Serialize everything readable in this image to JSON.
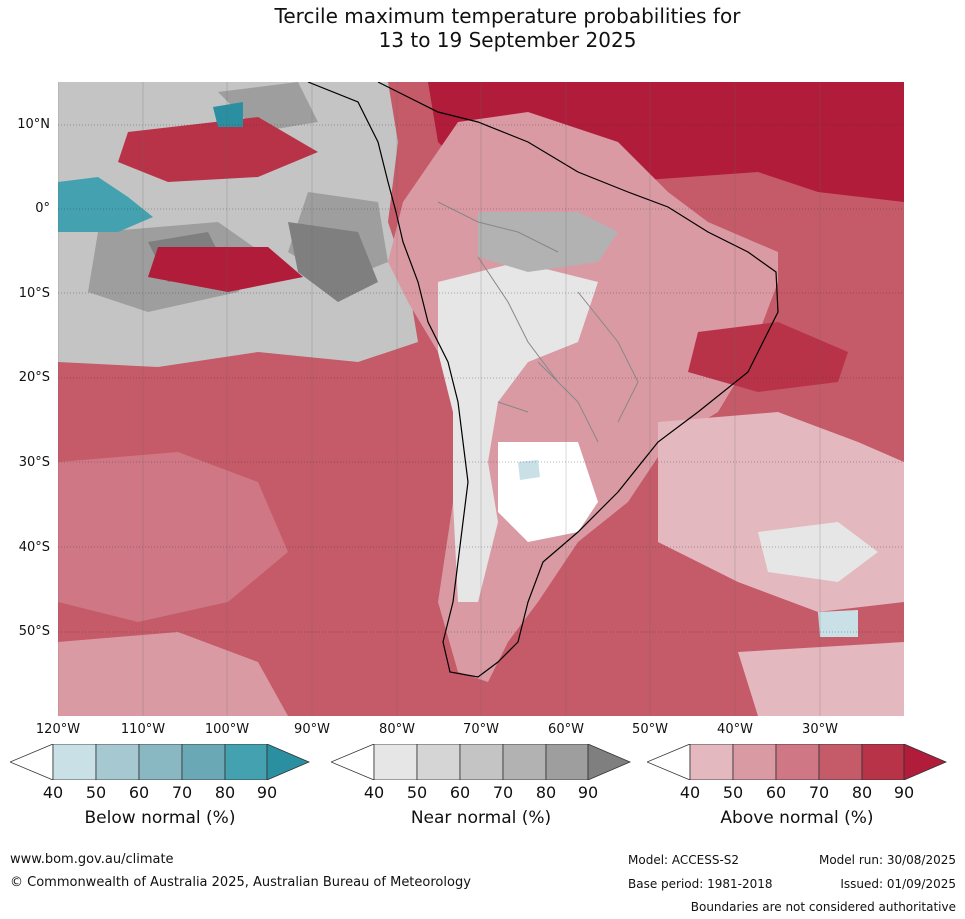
{
  "title": {
    "line1": "Tercile maximum temperature probabilities for",
    "line2": "13 to 19 September 2025"
  },
  "map": {
    "lat_labels": [
      "10°N",
      "0°",
      "10°S",
      "20°S",
      "30°S",
      "40°S",
      "50°S"
    ],
    "lon_labels": [
      "120°W",
      "110°W",
      "100°W",
      "90°W",
      "80°W",
      "70°W",
      "60°W",
      "50°W",
      "40°W",
      "30°W"
    ],
    "colors": {
      "above": [
        "#e3b8be",
        "#d99aa3",
        "#cf7784",
        "#c55a69",
        "#b93348",
        "#b01c3a"
      ],
      "near": [
        "#ffffff",
        "#e6e6e6",
        "#d5d5d5",
        "#c4c4c4",
        "#b2b2b2",
        "#9e9e9e",
        "#7f7f7f"
      ],
      "below": [
        "#ffffff",
        "#c9e0e7",
        "#a6c8d0",
        "#89b8c2",
        "#6aa8b6",
        "#44a1b0",
        "#2a8fa0"
      ],
      "land_outline": "#000000",
      "border": "#888888"
    }
  },
  "colorbars": [
    {
      "name": "below",
      "label": "Below normal (%)",
      "ticks": [
        "40",
        "50",
        "60",
        "70",
        "80",
        "90"
      ],
      "colors": [
        "#ffffff",
        "#c9e0e7",
        "#a6c8d0",
        "#89b8c2",
        "#6aa8b6",
        "#44a1b0",
        "#2a8fa0"
      ]
    },
    {
      "name": "near",
      "label": "Near normal (%)",
      "ticks": [
        "40",
        "50",
        "60",
        "70",
        "80",
        "90"
      ],
      "colors": [
        "#ffffff",
        "#e6e6e6",
        "#d5d5d5",
        "#c4c4c4",
        "#b2b2b2",
        "#9e9e9e",
        "#7f7f7f"
      ]
    },
    {
      "name": "above",
      "label": "Above normal (%)",
      "ticks": [
        "40",
        "50",
        "60",
        "70",
        "80",
        "90"
      ],
      "colors": [
        "#ffffff",
        "#e3b8be",
        "#d99aa3",
        "#cf7784",
        "#c55a69",
        "#b93348",
        "#b01c3a"
      ]
    }
  ],
  "footer": {
    "website": "www.bom.gov.au/climate",
    "copyright": "© Commonwealth of Australia 2025, Australian Bureau of Meteorology",
    "model": "Model: ACCESS-S2",
    "base_period": "Base period: 1981-2018",
    "model_run": "Model run: 30/08/2025",
    "issued": "Issued: 01/09/2025",
    "disclaimer": "Boundaries are not considered authoritative"
  }
}
